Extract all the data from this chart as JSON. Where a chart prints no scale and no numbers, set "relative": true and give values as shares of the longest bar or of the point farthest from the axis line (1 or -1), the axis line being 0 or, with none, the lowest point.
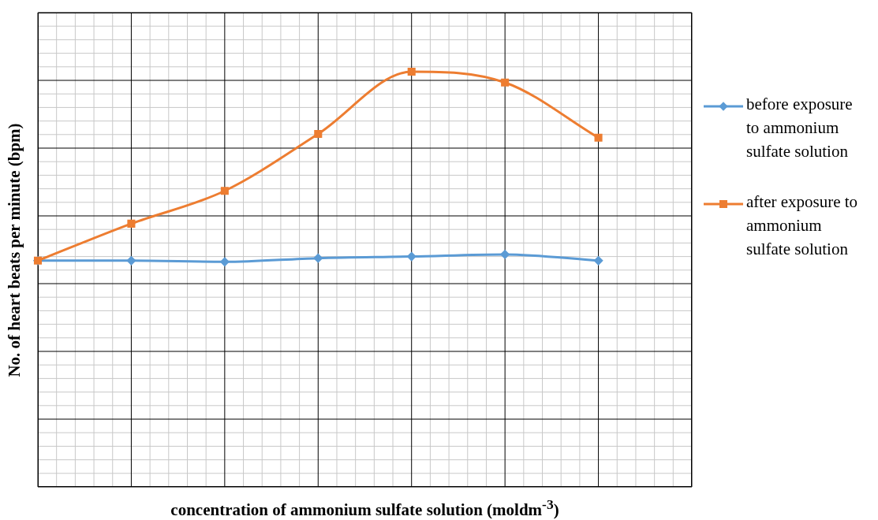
{
  "chart_data": {
    "type": "line",
    "relative": true,
    "xlabel": "concentration of ammonium sulfate solution (moldm$^{-3}$)",
    "ylabel": "No. of heart beats per minute (bpm)",
    "categories": [
      null,
      null,
      null,
      null,
      null,
      null,
      null
    ],
    "grid": true,
    "legend": "right",
    "series": [
      {
        "name": "before exposure to ammonium sulfate solution",
        "color": "#5b9bd5",
        "marker": "diamond",
        "values": [
          0.545,
          0.545,
          0.542,
          0.551,
          0.555,
          0.56,
          0.545
        ]
      },
      {
        "name": "after exposure to ammonium sulfate solution",
        "color": "#ed7d31",
        "marker": "square",
        "values": [
          0.545,
          0.634,
          0.713,
          0.85,
          1,
          0.974,
          0.841
        ]
      }
    ]
  }
}
